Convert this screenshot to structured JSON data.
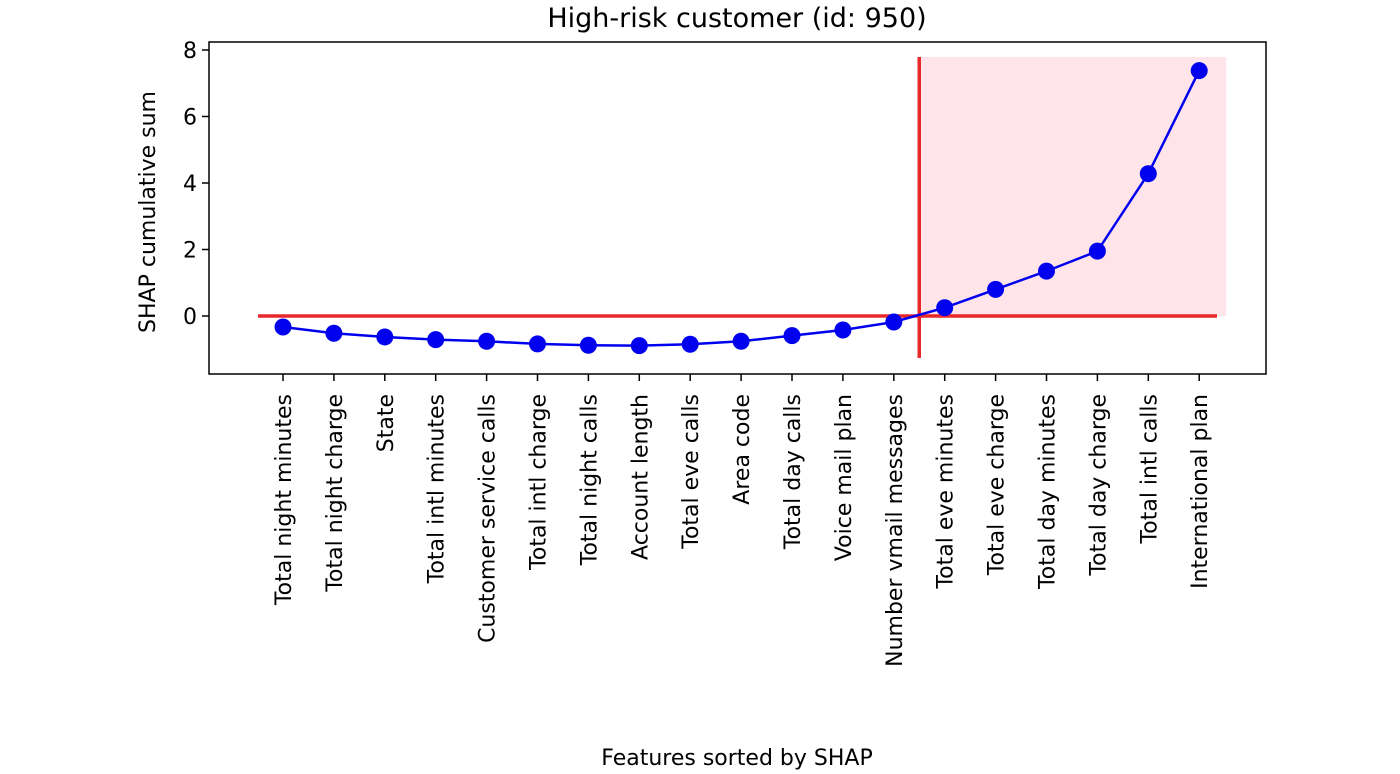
{
  "chart_data": {
    "type": "line",
    "title": "High-risk customer (id: 950)",
    "xlabel": "Features sorted by SHAP",
    "ylabel": "SHAP cumulative sum",
    "categories": [
      "Total night minutes",
      "Total night charge",
      "State",
      "Total intl minutes",
      "Customer service calls",
      "Total intl charge",
      "Total night calls",
      "Account length",
      "Total eve calls",
      "Area code",
      "Total day calls",
      "Voice mail plan",
      "Number vmail messages",
      "Total eve minutes",
      "Total eve charge",
      "Total day minutes",
      "Total day charge",
      "Total intl calls",
      "International plan"
    ],
    "series": [
      {
        "values": [
          -0.33,
          -0.52,
          -0.63,
          -0.71,
          -0.76,
          -0.84,
          -0.88,
          -0.89,
          -0.85,
          -0.76,
          -0.59,
          -0.42,
          -0.18,
          0.25,
          0.8,
          1.35,
          1.95,
          4.28,
          7.38
        ]
      }
    ],
    "ylim": [
      -1.75,
      8.0
    ],
    "yticks": [
      0,
      2,
      4,
      6,
      8
    ],
    "reference_line_y": 0,
    "threshold_between": [
      "Number vmail messages",
      "Total eve minutes"
    ],
    "highlight_region": "positive cumulative SHAP (right of threshold)",
    "grid": false,
    "colors": {
      "series": "#0000ee",
      "reference": "#e8282b",
      "highlight": "#ffe4ea",
      "axes": "#000000"
    }
  }
}
